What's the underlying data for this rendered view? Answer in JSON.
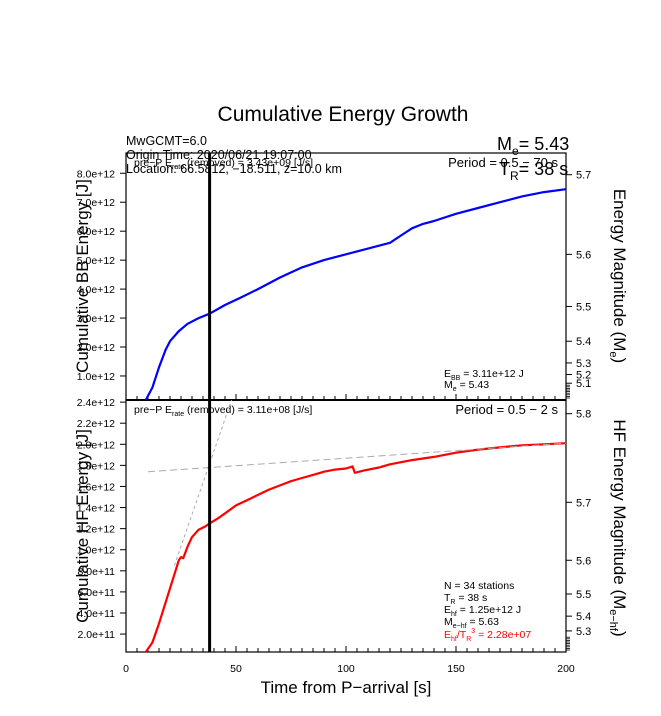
{
  "chart_data": [
    {
      "type": "line",
      "panel": "top",
      "title": "Cumulative Energy Growth",
      "xlabel": "Time from P-arrival [s]",
      "ylabel": "Cumulative BB Energy [J]",
      "ylabel_right": "Energy Magnitude (M_e)",
      "xlim": [
        0,
        200
      ],
      "ylim": [
        170000000000.0,
        8700000000000.0
      ],
      "yticks": [
        1000000000000.0,
        2000000000000.0,
        3000000000000.0,
        4000000000000.0,
        5000000000000.0,
        6000000000000.0,
        7000000000000.0,
        8000000000000.0
      ],
      "ytick_labels": [
        "1.0e+12",
        "2.0e+12",
        "3.0e+12",
        "4.0e+12",
        "5.0e+12",
        "6.0e+12",
        "7.0e+12",
        "8.0e+12"
      ],
      "right_ticks": [
        {
          "label": "5.7",
          "value": 7950000000000.0
        },
        {
          "label": "5.6",
          "value": 5200000000000.0
        },
        {
          "label": "5.5",
          "value": 3400000000000.0
        },
        {
          "label": "5.4",
          "value": 2200000000000.0
        },
        {
          "label": "5.3",
          "value": 1450000000000.0
        },
        {
          "label": "5.2",
          "value": 1050000000000.0
        },
        {
          "label": "5.1",
          "value": 750000000000.0
        }
      ],
      "series": [
        {
          "name": "BB energy",
          "color": "#0000ff",
          "x": [
            9,
            12,
            15,
            18,
            20,
            24,
            28,
            33,
            38,
            45,
            52,
            60,
            70,
            80,
            90,
            100,
            110,
            120,
            125,
            130,
            135,
            140,
            150,
            160,
            170,
            180,
            190,
            200
          ],
          "y": [
            170000000000.0,
            600000000000.0,
            1300000000000.0,
            1900000000000.0,
            2200000000000.0,
            2550000000000.0,
            2800000000000.0,
            3000000000000.0,
            3150000000000.0,
            3450000000000.0,
            3700000000000.0,
            4000000000000.0,
            4400000000000.0,
            4750000000000.0,
            5000000000000.0,
            5200000000000.0,
            5400000000000.0,
            5600000000000.0,
            5850000000000.0,
            6100000000000.0,
            6250000000000.0,
            6350000000000.0,
            6600000000000.0,
            6800000000000.0,
            7000000000000.0,
            7200000000000.0,
            7350000000000.0,
            7450000000000.0
          ]
        }
      ],
      "vline_x": 38,
      "annotations": {
        "pre_p": "pre−P E_rate (removed) = 3.43e+09 [J/s]",
        "period": "Period = 0.5 − 70 s",
        "ebb": "E_BB = 3.11e+12 J",
        "me": "M_e = 5.43"
      }
    },
    {
      "type": "line",
      "panel": "bottom",
      "xlabel": "Time from P-arrival [s]",
      "ylabel": "Cumulative HF Energy [J]",
      "ylabel_right": "HF Energy Magnitude (M_e-hf)",
      "xlim": [
        0,
        200
      ],
      "ylim": [
        30000000000.0,
        2420000000000.0
      ],
      "xticks": [
        0,
        50,
        100,
        150,
        200
      ],
      "yticks": [
        200000000000.0,
        400000000000.0,
        600000000000.0,
        800000000000.0,
        1000000000000.0,
        1200000000000.0,
        1400000000000.0,
        1600000000000.0,
        1800000000000.0,
        2000000000000.0,
        2200000000000.0,
        2400000000000.0
      ],
      "ytick_labels": [
        "2.0e+11",
        "4.0e+11",
        "6.0e+11",
        "8.0e+11",
        "1.0e+12",
        "1.2e+12",
        "1.4e+12",
        "1.6e+12",
        "1.8e+12",
        "2.0e+12",
        "2.2e+12",
        "2.4e+12"
      ],
      "right_ticks": [
        {
          "label": "5.8",
          "value": 2290000000000.0
        },
        {
          "label": "5.7",
          "value": 1450000000000.0
        },
        {
          "label": "5.6",
          "value": 900000000000.0
        },
        {
          "label": "5.5",
          "value": 580000000000.0
        },
        {
          "label": "5.4",
          "value": 370000000000.0
        },
        {
          "label": "5.3",
          "value": 230000000000.0
        }
      ],
      "series": [
        {
          "name": "HF energy",
          "color": "#ff0000",
          "x": [
            9,
            12,
            15,
            18,
            21,
            24,
            25,
            26,
            28,
            30,
            33,
            36,
            38,
            42,
            46,
            50,
            55,
            60,
            65,
            70,
            75,
            80,
            85,
            90,
            95,
            100,
            103,
            104,
            108,
            115,
            120,
            130,
            140,
            150,
            160,
            170,
            180,
            190,
            200
          ],
          "y": [
            30000000000.0,
            120000000000.0,
            300000000000.0,
            500000000000.0,
            700000000000.0,
            900000000000.0,
            930000000000.0,
            920000000000.0,
            1030000000000.0,
            1120000000000.0,
            1190000000000.0,
            1220000000000.0,
            1250000000000.0,
            1300000000000.0,
            1360000000000.0,
            1420000000000.0,
            1470000000000.0,
            1520000000000.0,
            1570000000000.0,
            1610000000000.0,
            1650000000000.0,
            1680000000000.0,
            1710000000000.0,
            1740000000000.0,
            1760000000000.0,
            1770000000000.0,
            1790000000000.0,
            1730000000000.0,
            1750000000000.0,
            1780000000000.0,
            1810000000000.0,
            1850000000000.0,
            1880000000000.0,
            1920000000000.0,
            1950000000000.0,
            1970000000000.0,
            1990000000000.0,
            2000000000000.0,
            2010000000000.0
          ]
        },
        {
          "name": "early-slope fit (dashed)",
          "color": "#aaaaaa",
          "x": [
            22,
            48
          ],
          "y": [
            850000000000.0,
            2420000000000.0
          ]
        },
        {
          "name": "late-trend fit (dashed)",
          "color": "#aaaaaa",
          "x": [
            10,
            200
          ],
          "y": [
            1740000000000.0,
            2010000000000.0
          ]
        }
      ],
      "vline_x": 38,
      "annotations": {
        "pre_p": "pre−P E_rate (removed) = 3.11e+08 [J/s]",
        "period": "Period = 0.5 − 2 s",
        "n": "N = 34 stations",
        "tr": "T_R = 38  s",
        "ehf": "E_hf = 1.25e+12 J",
        "mehf": "M_e−hf = 5.63",
        "ratio": "E_hf/T_R^3 =  2.28e+07"
      }
    }
  ],
  "header": {
    "title": "Cumulative Energy Growth",
    "mw": "MwGCMT=6.0",
    "origin": "Origin Time: 2020/06/21 19:07:00",
    "location": "Location: 66.5812, −18.511, z=10.0 km",
    "me_label": "M",
    "me_sub": "e",
    "me_value": "= 5.43",
    "tr_label": "T",
    "tr_sub": "R",
    "tr_value": "= 38 s"
  },
  "text": {
    "top_ylabel": "Cumulative BB Energy [J]",
    "bottom_ylabel": "Cumulative HF Energy [J]",
    "top_right_label": "Energy Magnitude (M",
    "top_right_sub": "e",
    "bottom_right_label": "HF Energy Magnitude (M",
    "bottom_right_sub": "e−hf",
    "xlabel": "Time from P−arrival [s]",
    "top_prep_a": "pre−P E",
    "top_prep_sub": "rate",
    "top_prep_b": " (removed) = 3.43e+09 [J/s]",
    "bot_prep_b": " (removed) = 3.11e+08 [J/s]",
    "top_period": "Period = 0.5 − 70 s",
    "bot_period": "Period = 0.5 − 2 s",
    "ebb_a": "E",
    "ebb_sub": "BB",
    "ebb_b": " = 3.11e+12 J",
    "me_a": "M",
    "me_sub": "e",
    "me_b": " = 5.43",
    "n_stations": "N = 34 stations",
    "tr_a": "T",
    "tr_sub": "R",
    "tr_b": " = 38  s",
    "ehf_a": "E",
    "ehf_sub": "hf",
    "ehf_b": " = 1.25e+12 J",
    "mehf_a": "M",
    "mehf_sub": "e−hf",
    "mehf_b": " = 5.63",
    "ratio_a": "E",
    "ratio_sub": "hf",
    "ratio_mid": "/T",
    "ratio_sub2": "R",
    "ratio_sup": "3",
    "ratio_b": " =  2.28e+07"
  },
  "colors": {
    "bb": "#0000ff",
    "hf": "#ff0000",
    "ratio_text": "#ff0000",
    "fit": "#aaaaaa"
  }
}
